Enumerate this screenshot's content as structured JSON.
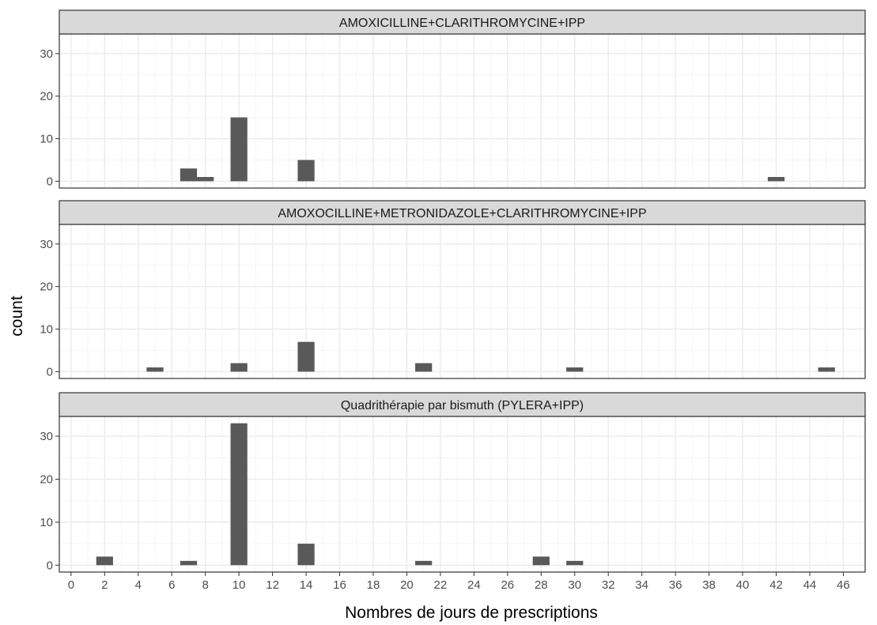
{
  "chart_data": {
    "type": "bar",
    "xlabel": "Nombres de jours de prescriptions",
    "ylabel": "count",
    "xlim": [
      -0.7,
      47.3
    ],
    "x_ticks": [
      0,
      2,
      4,
      6,
      8,
      10,
      12,
      14,
      16,
      18,
      20,
      22,
      24,
      26,
      28,
      30,
      32,
      34,
      36,
      38,
      40,
      42,
      44,
      46
    ],
    "ylim": [
      -1.6,
      34.6
    ],
    "y_ticks": [
      0,
      10,
      20,
      30
    ],
    "grid": true,
    "legend": "none",
    "colors": {
      "bar": "#595959",
      "strip_fill": "#d9d9d9",
      "strip_border": "#333333",
      "grid_major": "#ebebeb",
      "grid_minor": "#f5f5f5",
      "panel_border": "#333333"
    },
    "panels": [
      {
        "strip": "AMOXICILLINE+CLARITHROMYCINE+IPP",
        "x": [
          7,
          8,
          10,
          14,
          42
        ],
        "values": [
          3,
          1,
          15,
          5,
          1
        ]
      },
      {
        "strip": "AMOXOCILLINE+METRONIDAZOLE+CLARITHROMYCINE+IPP",
        "x": [
          5,
          10,
          14,
          21,
          30,
          45
        ],
        "values": [
          1,
          2,
          7,
          2,
          1,
          1
        ]
      },
      {
        "strip": "Quadrithérapie par bismuth (PYLERA+IPP)",
        "x": [
          2,
          7,
          10,
          14,
          21,
          28,
          30
        ],
        "values": [
          2,
          1,
          33,
          5,
          1,
          2,
          1
        ]
      }
    ]
  }
}
